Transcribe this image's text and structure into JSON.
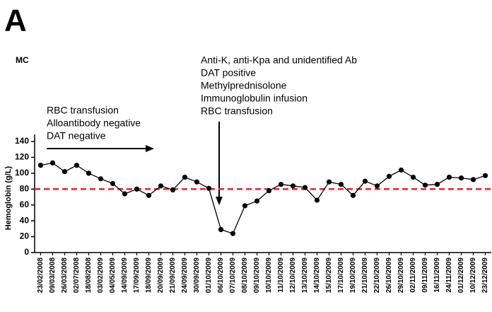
{
  "panel_label": "A",
  "chart_data": {
    "type": "line",
    "subtitle": "MC",
    "ylabel": "Hemoglobin (g/L)",
    "annotations": [
      [
        "RBC transfusion",
        "Alloantibody negative",
        "DAT negative"
      ],
      [
        "Anti-K, anti-Kpa and unidentified Ab",
        "DAT positive",
        "Methylprednisolone",
        "Immunoglobulin infusion",
        "RBC transfusion"
      ]
    ],
    "categories": [
      "23/02/2008",
      "09/03/2008",
      "26/03/2008",
      "02/07/2008",
      "18/08/2008",
      "03/02/2009",
      "04/05/2009",
      "14/09/2009",
      "17/09/2009",
      "18/09/2009",
      "20/09/2009",
      "21/09/2009",
      "24/09/2009",
      "30/09/2009",
      "01/10/2009",
      "06/10/2009",
      "07/10/2009",
      "08/10/2009",
      "09/10/2009",
      "10/10/2009",
      "11/10/2009",
      "12/10/2009",
      "13/10/2009",
      "14/10/2009",
      "15/10/2009",
      "17/10/2009",
      "19/10/2009",
      "21/10/2009",
      "22/10/2009",
      "26/10/2009",
      "29/10/2009",
      "02/11/2009",
      "09/11/2009",
      "16/11/2009",
      "24/11/2009",
      "01/12/2009",
      "10/12/2009",
      "23/12/2009"
    ],
    "values": [
      110,
      113,
      102,
      110,
      100,
      93,
      87,
      74,
      80,
      72,
      84,
      79,
      95,
      89,
      81,
      29,
      24,
      59,
      65,
      78,
      86,
      84,
      82,
      66,
      89,
      86,
      72,
      90,
      84,
      96,
      104,
      95,
      85,
      86,
      95,
      94,
      92,
      97
    ],
    "color": "#000000",
    "threshold": 80,
    "threshold_color": "#e8222a",
    "ylim": [
      0,
      140
    ],
    "yticks": [
      0,
      20,
      40,
      60,
      80,
      100,
      120,
      140
    ]
  }
}
